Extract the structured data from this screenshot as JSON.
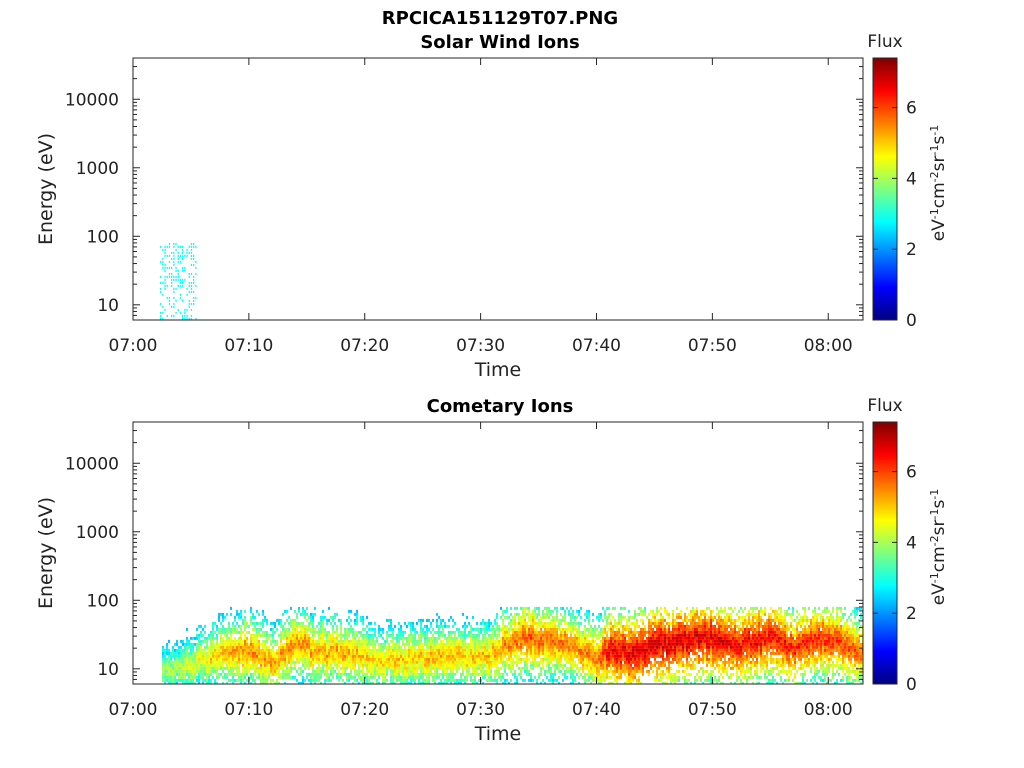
{
  "figure": {
    "title": "RPCICA151129T07.PNG"
  },
  "colorbar": {
    "colors": [
      "#00007f",
      "#0000ff",
      "#007fff",
      "#00ffff",
      "#7fff7f",
      "#ffff00",
      "#ff7f00",
      "#ff0000",
      "#7f0000"
    ]
  },
  "chart_data": [
    {
      "type": "heatmap",
      "title": "Solar Wind Ions",
      "xlabel": "Time",
      "ylabel": "Energy (eV)",
      "y_scale": "log",
      "y_range": [
        6,
        40000
      ],
      "x_range": [
        "07:00",
        "08:03"
      ],
      "x_ticks": [
        "07:00",
        "07:10",
        "07:20",
        "07:30",
        "07:40",
        "07:50",
        "08:00"
      ],
      "y_ticks": [
        "10",
        "100",
        "1000",
        "10000"
      ],
      "colorbar": {
        "label_top": "Flux",
        "label": "eV-1cm-2sr-1s-1",
        "ticks": [
          "0",
          "2",
          "4",
          "6"
        ],
        "range": [
          0,
          7.4
        ]
      },
      "data": [
        {
          "t_start": "07:02:20",
          "t_end": "07:05:30",
          "e_min": 6,
          "e_max": 80,
          "flux": 2.8
        }
      ]
    },
    {
      "type": "heatmap",
      "title": "Cometary Ions",
      "xlabel": "Time",
      "ylabel": "Energy (eV)",
      "y_scale": "log",
      "y_range": [
        6,
        40000
      ],
      "x_range": [
        "07:00",
        "08:03"
      ],
      "x_ticks": [
        "07:00",
        "07:10",
        "07:20",
        "07:30",
        "07:40",
        "07:50",
        "08:00"
      ],
      "y_ticks": [
        "10",
        "100",
        "1000",
        "10000"
      ],
      "colorbar": {
        "label_top": "Flux",
        "label": "eV-1cm-2sr-1s-1",
        "ticks": [
          "0",
          "2",
          "4",
          "6"
        ],
        "range": [
          0,
          7.4
        ]
      },
      "peak_energy_track": [
        {
          "t": "07:02:30",
          "e": 10,
          "flux": 4.0
        },
        {
          "t": "07:05",
          "e": 12,
          "flux": 4.5
        },
        {
          "t": "07:08",
          "e": 18,
          "flux": 5.3
        },
        {
          "t": "07:10",
          "e": 20,
          "flux": 5.6
        },
        {
          "t": "07:12",
          "e": 12,
          "flux": 5.4
        },
        {
          "t": "07:14",
          "e": 25,
          "flux": 5.6
        },
        {
          "t": "07:16",
          "e": 18,
          "flux": 5.4
        },
        {
          "t": "07:19",
          "e": 18,
          "flux": 5.3
        },
        {
          "t": "07:21",
          "e": 14,
          "flux": 5.0
        },
        {
          "t": "07:25",
          "e": 15,
          "flux": 5.2
        },
        {
          "t": "07:28",
          "e": 16,
          "flux": 5.2
        },
        {
          "t": "07:30",
          "e": 15,
          "flux": 5.1
        },
        {
          "t": "07:32",
          "e": 22,
          "flux": 5.6
        },
        {
          "t": "07:34",
          "e": 30,
          "flux": 6.0
        },
        {
          "t": "07:36",
          "e": 28,
          "flux": 5.8
        },
        {
          "t": "07:38",
          "e": 22,
          "flux": 5.6
        },
        {
          "t": "07:40",
          "e": 14,
          "flux": 5.8
        },
        {
          "t": "07:41",
          "e": 20,
          "flux": 6.6
        },
        {
          "t": "07:43",
          "e": 18,
          "flux": 6.8
        },
        {
          "t": "07:45",
          "e": 22,
          "flux": 6.9
        },
        {
          "t": "07:48",
          "e": 28,
          "flux": 6.8
        },
        {
          "t": "07:50",
          "e": 30,
          "flux": 6.8
        },
        {
          "t": "07:52",
          "e": 24,
          "flux": 6.6
        },
        {
          "t": "07:55",
          "e": 30,
          "flux": 6.6
        },
        {
          "t": "07:57",
          "e": 20,
          "flux": 6.3
        },
        {
          "t": "07:59",
          "e": 30,
          "flux": 6.4
        },
        {
          "t": "08:01",
          "e": 25,
          "flux": 6.1
        },
        {
          "t": "08:03",
          "e": 18,
          "flux": 5.8
        }
      ]
    }
  ]
}
